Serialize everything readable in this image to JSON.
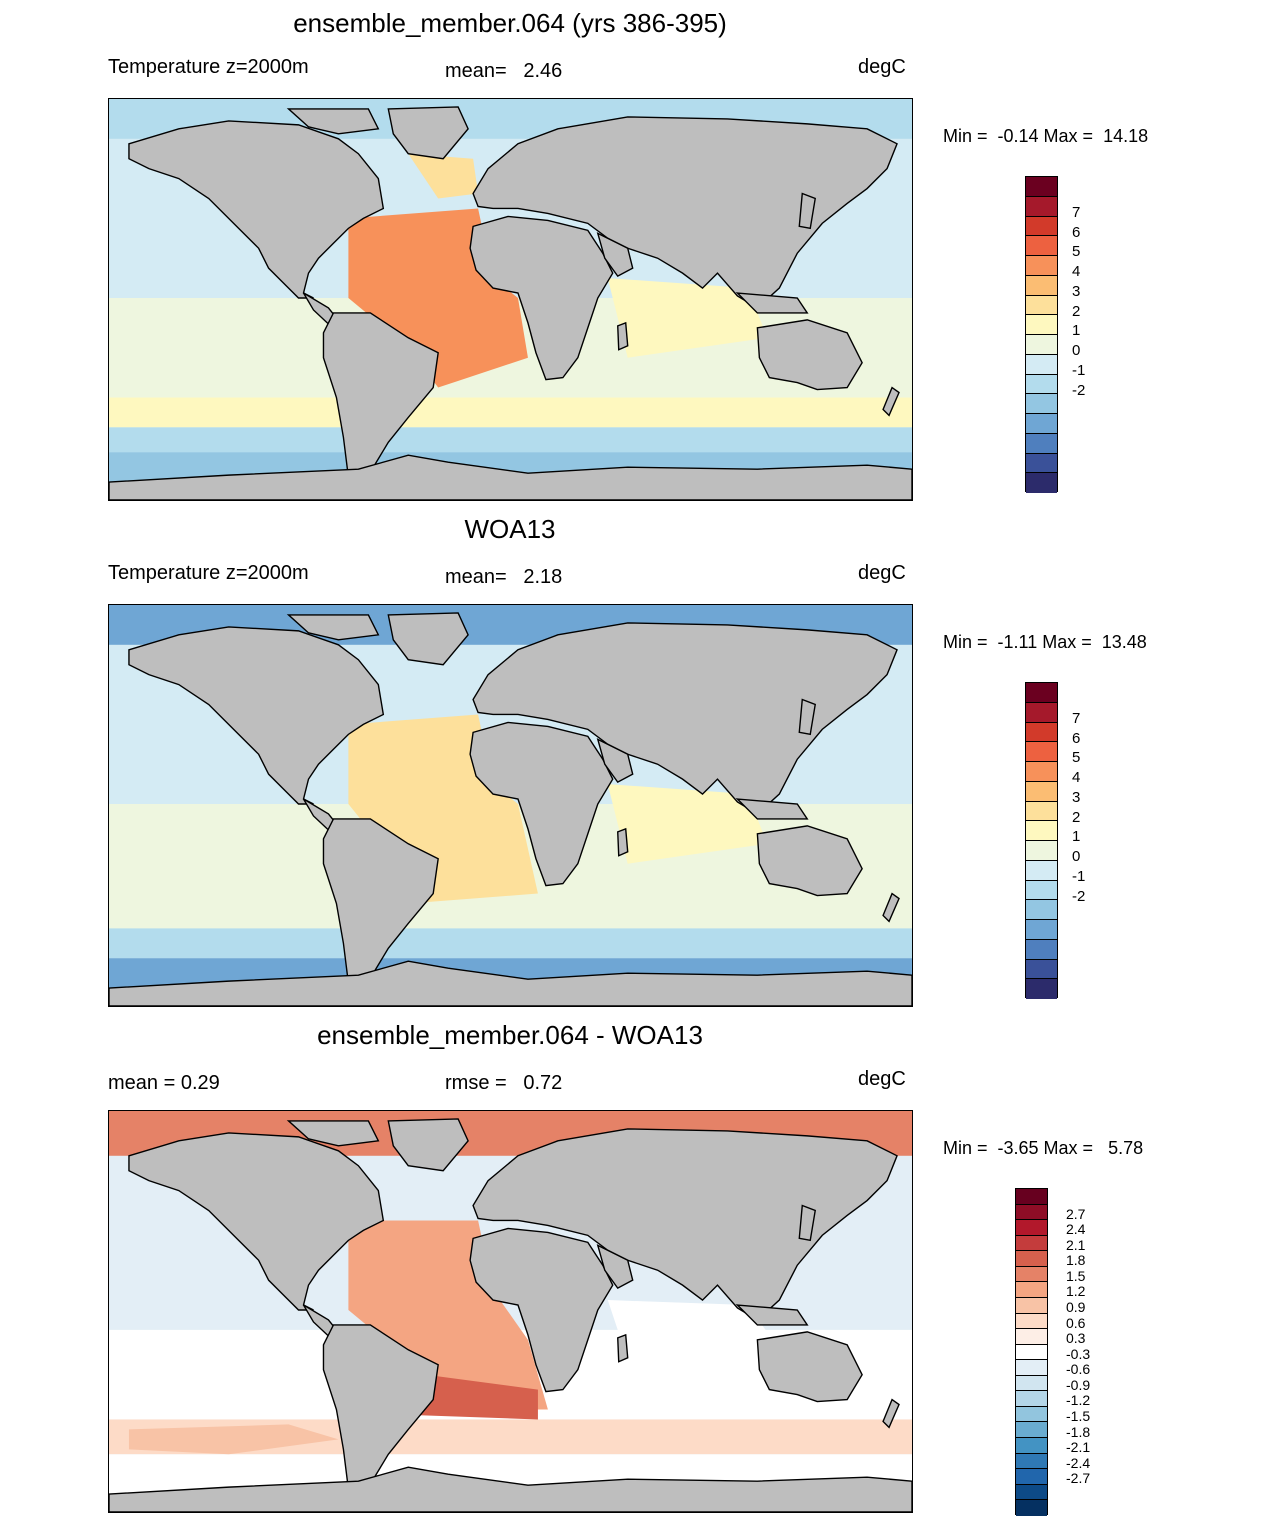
{
  "panels": [
    {
      "title": "ensemble_member.064 (yrs 386-395)",
      "left_label": "Temperature z=2000m",
      "mid_label": "mean=   2.46",
      "units": "degC",
      "minmax": "Min =  -0.14 Max =  14.18",
      "colorbar_labels": [
        "7",
        "6",
        "5",
        "4",
        "3",
        "2",
        "1",
        "0",
        "-1",
        "-2"
      ],
      "colorbar_colors": [
        "#6b0020",
        "#a5192b",
        "#d23a2a",
        "#ed6140",
        "#f7915a",
        "#fbbd73",
        "#fde09b",
        "#fef8bf",
        "#eef6df",
        "#d4ebf4",
        "#b3dced",
        "#93c6e2",
        "#6fa6d4",
        "#4f7fbe",
        "#3a5199",
        "#2c2b6b"
      ],
      "ocean_scheme": "ensemble"
    },
    {
      "title": "WOA13",
      "left_label": "Temperature z=2000m",
      "mid_label": "mean=   2.18",
      "units": "degC",
      "minmax": "Min =  -1.11 Max =  13.48",
      "colorbar_labels": [
        "7",
        "6",
        "5",
        "4",
        "3",
        "2",
        "1",
        "0",
        "-1",
        "-2"
      ],
      "colorbar_colors": [
        "#6b0020",
        "#a5192b",
        "#d23a2a",
        "#ed6140",
        "#f7915a",
        "#fbbd73",
        "#fde09b",
        "#fef8bf",
        "#eef6df",
        "#d4ebf4",
        "#b3dced",
        "#93c6e2",
        "#6fa6d4",
        "#4f7fbe",
        "#3a5199",
        "#2c2b6b"
      ],
      "ocean_scheme": "woa"
    },
    {
      "title": "ensemble_member.064 - WOA13",
      "left_label": "mean =   0.29",
      "mid_label": "rmse =   0.72",
      "units": "degC",
      "minmax": "Min =  -3.65 Max =   5.78",
      "colorbar_labels": [
        "2.7",
        "2.4",
        "2.1",
        "1.8",
        "1.5",
        "1.2",
        "0.9",
        "0.6",
        "0.3",
        "-0.3",
        "-0.6",
        "-0.9",
        "-1.2",
        "-1.5",
        "-1.8",
        "-2.1",
        "-2.4",
        "-2.7"
      ],
      "colorbar_colors": [
        "#67001f",
        "#8e0d26",
        "#b2182b",
        "#c43c3c",
        "#d6604d",
        "#e58267",
        "#f4a582",
        "#f8c3a6",
        "#fddbc7",
        "#fdeee6",
        "#ffffff",
        "#e3eef6",
        "#d1e5f0",
        "#b4d6e8",
        "#92c5de",
        "#6aacd0",
        "#4393c3",
        "#2f79b5",
        "#2166ac",
        "#0d4a87",
        "#053061"
      ],
      "ocean_scheme": "diff"
    }
  ]
}
